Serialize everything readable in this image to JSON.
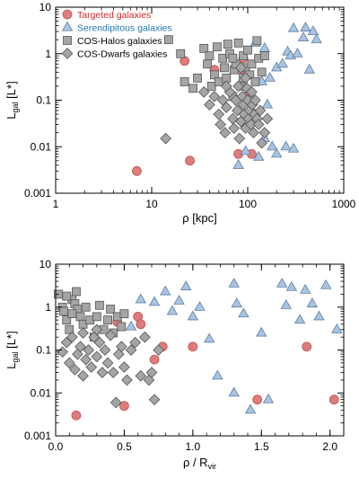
{
  "colors": {
    "targeted": "#e07b7b",
    "targeted_edge": "#b85858",
    "serendipitous": "#a8c4e2",
    "serendipitous_edge": "#5f7f9f",
    "cos_halos": "#a5a5a5",
    "cos_dwarfs": "#a5a5a5",
    "gray_edge": "#555555",
    "legend_targeted_text": "#d62728",
    "legend_serendipitous_text": "#1f77b4",
    "legend_other_text": "#000000"
  },
  "chart_data": [
    {
      "type": "scatter",
      "xscale": "log",
      "yscale": "log",
      "xlim": [
        1,
        1000
      ],
      "ylim": [
        0.001,
        10
      ],
      "xlabel": "ρ [kpc]",
      "ylabel": "L_gal [L*]",
      "ylabel_main": "L",
      "ylabel_sub": "gal",
      "ylabel_unit": " [L*]",
      "xticks": [
        1,
        10,
        100,
        1000
      ],
      "xtick_labels": [
        "1",
        "10",
        "100",
        "1000"
      ],
      "yticks": [
        0.001,
        0.01,
        0.1,
        1,
        10
      ],
      "ytick_labels": [
        "0.001",
        "0.01",
        "0.1",
        "1",
        "10"
      ],
      "legend_position": "top-left",
      "series": [
        {
          "name": "Targeted galaxies",
          "marker": "circle",
          "points": [
            [
              7,
              0.003
            ],
            [
              25,
              0.005
            ],
            [
              22,
              0.7
            ],
            [
              45,
              0.45
            ],
            [
              80,
              0.007
            ],
            [
              85,
              0.45
            ],
            [
              90,
              0.8
            ],
            [
              100,
              0.13
            ],
            [
              110,
              0.007
            ]
          ]
        },
        {
          "name": "Serendipitous galaxies",
          "marker": "triangle",
          "points": [
            [
              120,
              1.7
            ],
            [
              140,
              0.25
            ],
            [
              150,
              1.3
            ],
            [
              170,
              0.3
            ],
            [
              200,
              0.5
            ],
            [
              230,
              0.6
            ],
            [
              260,
              1.1
            ],
            [
              280,
              0.9
            ],
            [
              300,
              3.5
            ],
            [
              330,
              1.0
            ],
            [
              380,
              2.2
            ],
            [
              400,
              3.6
            ],
            [
              440,
              0.45
            ],
            [
              480,
              3.0
            ],
            [
              520,
              2.0
            ],
            [
              150,
              0.015
            ],
            [
              95,
              0.008
            ],
            [
              130,
              0.006
            ],
            [
              180,
              0.01
            ],
            [
              200,
              0.007
            ],
            [
              250,
              0.01
            ],
            [
              300,
              0.009
            ],
            [
              80,
              0.004
            ],
            [
              110,
              0.11
            ],
            [
              160,
              0.08
            ]
          ]
        },
        {
          "name": "COS-Halos galaxies",
          "marker": "square",
          "points": [
            [
              15,
              2.0
            ],
            [
              20,
              1.0
            ],
            [
              22,
              0.25
            ],
            [
              27,
              0.18
            ],
            [
              30,
              0.3
            ],
            [
              35,
              1.3
            ],
            [
              38,
              0.6
            ],
            [
              40,
              0.9
            ],
            [
              42,
              0.2
            ],
            [
              45,
              0.35
            ],
            [
              48,
              1.4
            ],
            [
              50,
              0.25
            ],
            [
              55,
              0.8
            ],
            [
              57,
              0.5
            ],
            [
              60,
              0.3
            ],
            [
              62,
              1.6
            ],
            [
              65,
              1.0
            ],
            [
              70,
              0.12
            ],
            [
              72,
              0.45
            ],
            [
              75,
              0.6
            ],
            [
              80,
              1.7
            ],
            [
              85,
              0.2
            ],
            [
              90,
              0.9
            ],
            [
              95,
              0.5
            ],
            [
              100,
              1.2
            ],
            [
              105,
              0.35
            ],
            [
              110,
              0.6
            ],
            [
              120,
              0.25
            ],
            [
              125,
              1.9
            ],
            [
              130,
              0.8
            ],
            [
              140,
              0.4
            ],
            [
              150,
              0.9
            ],
            [
              90,
              0.3
            ],
            [
              70,
              0.8
            ]
          ]
        },
        {
          "name": "COS-Dwarfs galaxies",
          "marker": "diamond",
          "points": [
            [
              14,
              0.015
            ],
            [
              35,
              0.15
            ],
            [
              40,
              0.08
            ],
            [
              45,
              0.12
            ],
            [
              50,
              0.05
            ],
            [
              52,
              0.03
            ],
            [
              55,
              0.1
            ],
            [
              58,
              0.02
            ],
            [
              60,
              0.07
            ],
            [
              65,
              0.15
            ],
            [
              70,
              0.04
            ],
            [
              72,
              0.025
            ],
            [
              75,
              0.1
            ],
            [
              78,
              0.06
            ],
            [
              80,
              0.2
            ],
            [
              82,
              0.015
            ],
            [
              85,
              0.035
            ],
            [
              88,
              0.12
            ],
            [
              90,
              0.08
            ],
            [
              92,
              0.05
            ],
            [
              95,
              0.025
            ],
            [
              98,
              0.18
            ],
            [
              100,
              0.1
            ],
            [
              102,
              0.04
            ],
            [
              105,
              0.06
            ],
            [
              108,
              0.03
            ],
            [
              110,
              0.15
            ],
            [
              112,
              0.08
            ],
            [
              115,
              0.02
            ],
            [
              118,
              0.05
            ],
            [
              120,
              0.1
            ],
            [
              125,
              0.04
            ],
            [
              130,
              0.03
            ],
            [
              135,
              0.06
            ],
            [
              140,
              0.012
            ],
            [
              150,
              0.02
            ],
            [
              160,
              0.04
            ],
            [
              95,
              0.3
            ],
            [
              85,
              0.5
            ],
            [
              60,
              0.2
            ]
          ]
        }
      ]
    },
    {
      "type": "scatter",
      "xscale": "linear",
      "yscale": "log",
      "xlim": [
        0,
        2.1
      ],
      "ylim": [
        0.001,
        10
      ],
      "xlabel": "ρ / R_vir",
      "xlabel_main": "ρ / R",
      "xlabel_sub": "vir",
      "ylabel": "L_gal [L*]",
      "ylabel_main": "L",
      "ylabel_sub": "gal",
      "ylabel_unit": " [L*]",
      "xticks": [
        0,
        0.5,
        1,
        1.5,
        2
      ],
      "xtick_labels": [
        "0.0",
        "0.5",
        "1.0",
        "1.5",
        "2.0"
      ],
      "yticks": [
        0.001,
        0.01,
        0.1,
        1,
        10
      ],
      "ytick_labels": [
        "0.001",
        "0.01",
        "0.1",
        "1",
        "10"
      ],
      "series": [
        {
          "name": "Targeted galaxies",
          "marker": "circle",
          "points": [
            [
              0.15,
              0.003
            ],
            [
              0.5,
              0.005
            ],
            [
              0.45,
              0.45
            ],
            [
              0.6,
              0.6
            ],
            [
              0.62,
              0.4
            ],
            [
              0.72,
              0.06
            ],
            [
              0.78,
              0.12
            ],
            [
              1.0,
              0.12
            ],
            [
              1.47,
              0.007
            ],
            [
              1.83,
              0.12
            ],
            [
              2.03,
              0.007
            ]
          ]
        },
        {
          "name": "Serendipitous galaxies",
          "marker": "triangle",
          "points": [
            [
              0.55,
              0.35
            ],
            [
              0.62,
              1.5
            ],
            [
              0.72,
              1.3
            ],
            [
              0.8,
              2.3
            ],
            [
              0.85,
              0.8
            ],
            [
              0.9,
              1.4
            ],
            [
              0.95,
              3.0
            ],
            [
              1.0,
              0.6
            ],
            [
              1.05,
              1.0
            ],
            [
              1.12,
              0.18
            ],
            [
              1.18,
              0.025
            ],
            [
              1.3,
              3.5
            ],
            [
              1.32,
              1.2
            ],
            [
              1.37,
              0.7
            ],
            [
              1.42,
              0.004
            ],
            [
              1.5,
              0.25
            ],
            [
              1.55,
              0.007
            ],
            [
              1.65,
              3.5
            ],
            [
              1.68,
              1.1
            ],
            [
              1.72,
              2.9
            ],
            [
              1.78,
              0.5
            ],
            [
              1.82,
              2.5
            ],
            [
              1.87,
              1.2
            ],
            [
              1.92,
              0.6
            ],
            [
              1.97,
              3.2
            ],
            [
              2.05,
              0.3
            ],
            [
              1.3,
              0.01
            ]
          ]
        },
        {
          "name": "COS-Halos galaxies",
          "marker": "square",
          "points": [
            [
              0.02,
              2.0
            ],
            [
              0.05,
              1.0
            ],
            [
              0.06,
              0.8
            ],
            [
              0.08,
              0.5
            ],
            [
              0.1,
              0.3
            ],
            [
              0.12,
              1.5
            ],
            [
              0.14,
              1.2
            ],
            [
              0.15,
              2.3
            ],
            [
              0.16,
              0.9
            ],
            [
              0.18,
              0.6
            ],
            [
              0.2,
              0.4
            ],
            [
              0.22,
              1.0
            ],
            [
              0.25,
              0.5
            ],
            [
              0.28,
              0.2
            ],
            [
              0.3,
              0.6
            ],
            [
              0.32,
              1.1
            ],
            [
              0.35,
              0.3
            ],
            [
              0.38,
              0.5
            ],
            [
              0.4,
              0.9
            ],
            [
              0.42,
              0.25
            ],
            [
              0.45,
              0.6
            ],
            [
              0.48,
              0.35
            ],
            [
              0.5,
              0.7
            ],
            [
              0.12,
              0.7
            ],
            [
              0.08,
              1.8
            ]
          ]
        },
        {
          "name": "COS-Dwarfs galaxies",
          "marker": "diamond",
          "points": [
            [
              0.05,
              0.09
            ],
            [
              0.08,
              0.15
            ],
            [
              0.1,
              0.05
            ],
            [
              0.12,
              0.2
            ],
            [
              0.14,
              0.035
            ],
            [
              0.16,
              0.08
            ],
            [
              0.18,
              0.12
            ],
            [
              0.2,
              0.025
            ],
            [
              0.22,
              0.06
            ],
            [
              0.24,
              0.1
            ],
            [
              0.26,
              0.04
            ],
            [
              0.28,
              0.2
            ],
            [
              0.3,
              0.07
            ],
            [
              0.32,
              0.15
            ],
            [
              0.34,
              0.03
            ],
            [
              0.36,
              0.1
            ],
            [
              0.38,
              0.05
            ],
            [
              0.4,
              0.22
            ],
            [
              0.42,
              0.03
            ],
            [
              0.44,
              0.006
            ],
            [
              0.46,
              0.08
            ],
            [
              0.48,
              0.12
            ],
            [
              0.5,
              0.04
            ],
            [
              0.52,
              0.02
            ],
            [
              0.55,
              0.1
            ],
            [
              0.58,
              0.15
            ],
            [
              0.62,
              0.025
            ],
            [
              0.65,
              0.2
            ],
            [
              0.68,
              0.02
            ],
            [
              0.7,
              0.03
            ],
            [
              0.72,
              0.007
            ],
            [
              0.75,
              0.1
            ],
            [
              0.3,
              0.3
            ],
            [
              0.2,
              0.25
            ]
          ]
        }
      ]
    }
  ]
}
